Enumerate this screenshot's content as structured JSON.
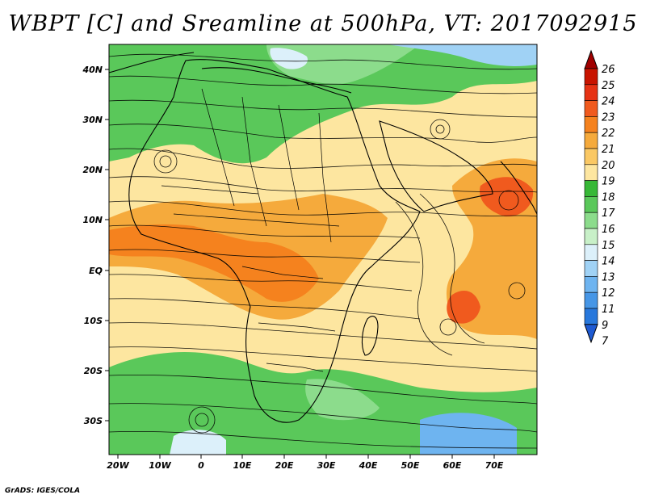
{
  "title": "WBPT [C] and Sreamline at 500hPa, VT: 2017092915",
  "credit": "GrADS: IGES/COLA",
  "map": {
    "lat_labels": [
      "40N",
      "30N",
      "20N",
      "10N",
      "EQ",
      "10S",
      "20S",
      "30S"
    ],
    "lon_labels": [
      "20W",
      "10W",
      "0",
      "10E",
      "20E",
      "30E",
      "40E",
      "50E",
      "60E",
      "70E"
    ]
  },
  "colorbar": {
    "labels": [
      "26",
      "25",
      "24",
      "23",
      "22",
      "21",
      "20",
      "19",
      "18",
      "17",
      "16",
      "15",
      "14",
      "13",
      "12",
      "11",
      "9",
      "7"
    ],
    "colors": [
      "#a00000",
      "#c81400",
      "#e63214",
      "#f05a1e",
      "#f5821e",
      "#f5aa3c",
      "#fac864",
      "#fde6a0",
      "#37b837",
      "#5ac85a",
      "#8cdc8c",
      "#c8f0c8",
      "#dcf0fa",
      "#a0d2f5",
      "#6eb4f0",
      "#4696e6",
      "#2878dc",
      "#1e5ad2"
    ]
  }
}
